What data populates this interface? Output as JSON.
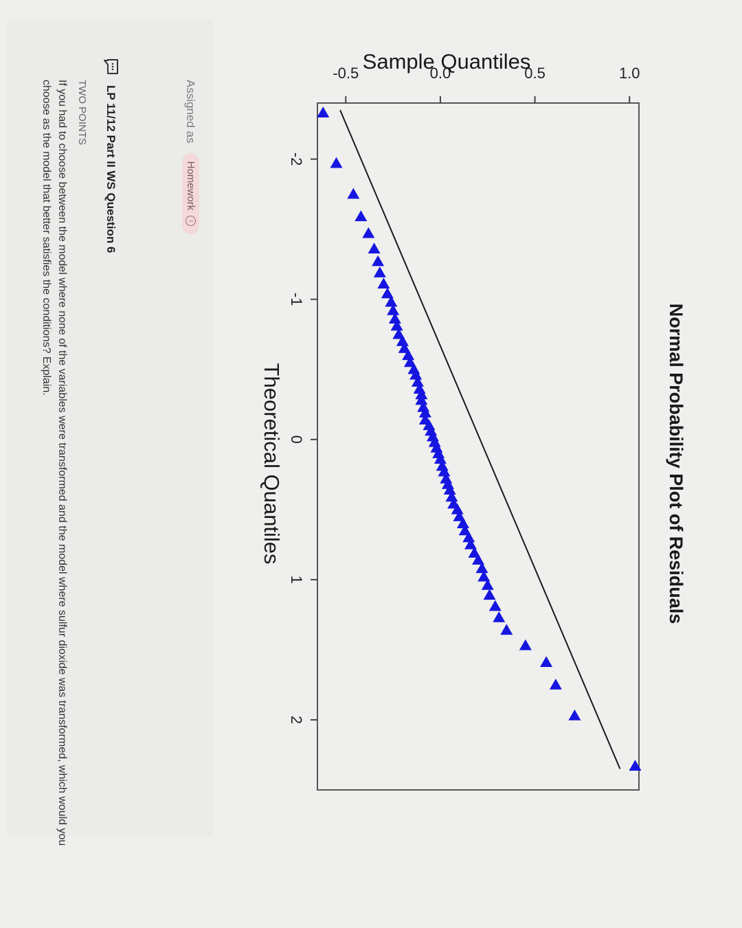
{
  "chart_data": {
    "type": "scatter",
    "title": "Normal Probability Plot of Residuals",
    "xlabel": "Theoretical Quantiles",
    "ylabel": "Sample Quantiles",
    "xlim": [
      -2.4,
      2.5
    ],
    "ylim": [
      -0.65,
      1.05
    ],
    "x_ticks": [
      -2,
      -1,
      0,
      1,
      2
    ],
    "y_ticks": [
      -0.5,
      0.0,
      0.5,
      1.0
    ],
    "y_tick_labels": [
      "-0.5",
      "0.0",
      "0.5",
      "1.0"
    ],
    "marker": "triangle",
    "marker_color": "#1616e0",
    "reference_line": {
      "x": [
        -2.35,
        2.35
      ],
      "y": [
        -0.53,
        0.95
      ],
      "color": "#1a1a1a"
    },
    "points": [
      {
        "x": -2.33,
        "y": -0.62
      },
      {
        "x": -1.97,
        "y": -0.55
      },
      {
        "x": -1.75,
        "y": -0.46
      },
      {
        "x": -1.59,
        "y": -0.42
      },
      {
        "x": -1.47,
        "y": -0.38
      },
      {
        "x": -1.36,
        "y": -0.35
      },
      {
        "x": -1.27,
        "y": -0.33
      },
      {
        "x": -1.19,
        "y": -0.32
      },
      {
        "x": -1.11,
        "y": -0.3
      },
      {
        "x": -1.04,
        "y": -0.28
      },
      {
        "x": -0.98,
        "y": -0.26
      },
      {
        "x": -0.92,
        "y": -0.25
      },
      {
        "x": -0.86,
        "y": -0.24
      },
      {
        "x": -0.81,
        "y": -0.23
      },
      {
        "x": -0.75,
        "y": -0.22
      },
      {
        "x": -0.7,
        "y": -0.2
      },
      {
        "x": -0.65,
        "y": -0.19
      },
      {
        "x": -0.6,
        "y": -0.17
      },
      {
        "x": -0.55,
        "y": -0.16
      },
      {
        "x": -0.5,
        "y": -0.14
      },
      {
        "x": -0.46,
        "y": -0.13
      },
      {
        "x": -0.41,
        "y": -0.12
      },
      {
        "x": -0.36,
        "y": -0.11
      },
      {
        "x": -0.32,
        "y": -0.1
      },
      {
        "x": -0.28,
        "y": -0.1
      },
      {
        "x": -0.23,
        "y": -0.09
      },
      {
        "x": -0.19,
        "y": -0.08
      },
      {
        "x": -0.14,
        "y": -0.08
      },
      {
        "x": -0.1,
        "y": -0.06
      },
      {
        "x": -0.06,
        "y": -0.05
      },
      {
        "x": -0.02,
        "y": -0.04
      },
      {
        "x": 0.02,
        "y": -0.03
      },
      {
        "x": 0.06,
        "y": -0.02
      },
      {
        "x": 0.1,
        "y": -0.01
      },
      {
        "x": 0.14,
        "y": 0.0
      },
      {
        "x": 0.19,
        "y": 0.01
      },
      {
        "x": 0.23,
        "y": 0.02
      },
      {
        "x": 0.28,
        "y": 0.03
      },
      {
        "x": 0.32,
        "y": 0.04
      },
      {
        "x": 0.36,
        "y": 0.05
      },
      {
        "x": 0.41,
        "y": 0.06
      },
      {
        "x": 0.46,
        "y": 0.07
      },
      {
        "x": 0.5,
        "y": 0.09
      },
      {
        "x": 0.55,
        "y": 0.1
      },
      {
        "x": 0.6,
        "y": 0.12
      },
      {
        "x": 0.65,
        "y": 0.13
      },
      {
        "x": 0.7,
        "y": 0.15
      },
      {
        "x": 0.75,
        "y": 0.16
      },
      {
        "x": 0.81,
        "y": 0.18
      },
      {
        "x": 0.86,
        "y": 0.2
      },
      {
        "x": 0.92,
        "y": 0.22
      },
      {
        "x": 0.98,
        "y": 0.23
      },
      {
        "x": 1.04,
        "y": 0.25
      },
      {
        "x": 1.11,
        "y": 0.26
      },
      {
        "x": 1.19,
        "y": 0.29
      },
      {
        "x": 1.27,
        "y": 0.31
      },
      {
        "x": 1.36,
        "y": 0.35
      },
      {
        "x": 1.47,
        "y": 0.45
      },
      {
        "x": 1.59,
        "y": 0.56
      },
      {
        "x": 1.75,
        "y": 0.61
      },
      {
        "x": 1.97,
        "y": 0.71
      },
      {
        "x": 2.33,
        "y": 1.03
      }
    ]
  },
  "assignment": {
    "assigned_as": "Assigned as",
    "badge": "Homework",
    "info_glyph": "i",
    "title": "LP 11/12 Part II WS Question 6",
    "points": "TWO POINTS",
    "prompt": "If you had to choose between the model where none of the variables were transformed and the model where sulfur dioxide was transformed, which would you choose as the model that better satisfies the conditions? Explain."
  }
}
